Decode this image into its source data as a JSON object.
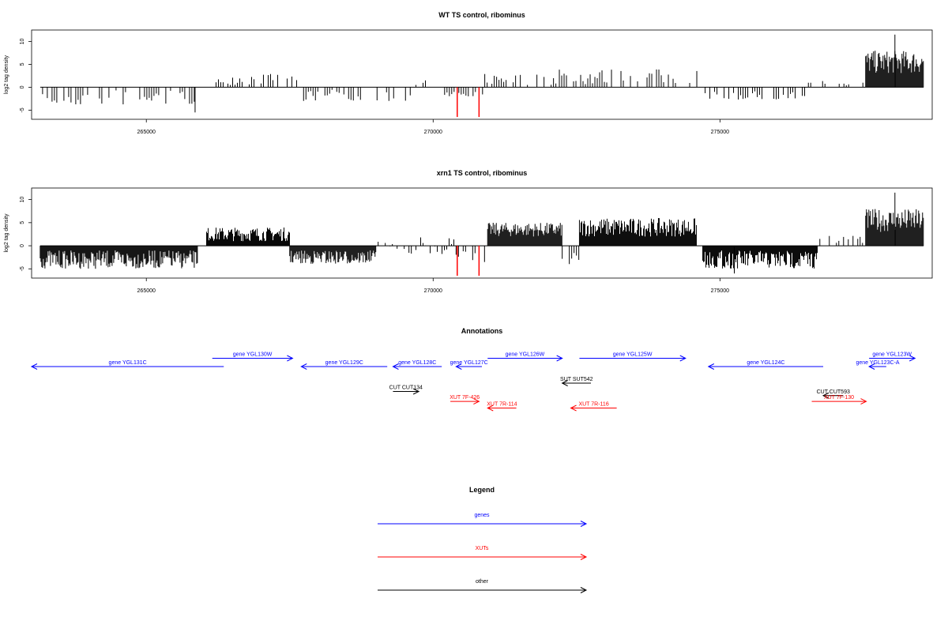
{
  "chart_data": [
    {
      "type": "bar",
      "title": "WT TS control, ribominus",
      "ylabel": "log2 tag density",
      "xlabel": "",
      "xlim": [
        263000,
        278700
      ],
      "ylim": [
        -7,
        12.5
      ],
      "xticks": [
        265000,
        270000,
        275000
      ],
      "xtick_labels": [
        "265000",
        "270000",
        "275000"
      ],
      "yticks": [
        -5,
        0,
        5,
        10
      ],
      "ytick_labels": [
        "-5",
        "0",
        "5",
        "10"
      ],
      "grid": false,
      "coverage_series": [
        {
          "name": "",
          "color": "#000000",
          "segments": [
            {
              "x": [
                263150,
                265900
              ],
              "y_range": [
                -4,
                -0.5
              ]
            },
            {
              "x": [
                266050,
                267700
              ],
              "y_range": [
                0.5,
                3
              ]
            },
            {
              "x": [
                267700,
                269700
              ],
              "y_range": [
                -3,
                -0.5
              ]
            },
            {
              "x": [
                269700,
                270200
              ],
              "y_range": [
                0.3,
                1.5
              ]
            },
            {
              "x": [
                270200,
                270900
              ],
              "y_range": [
                -2,
                -0.5
              ]
            },
            {
              "x": [
                270900,
                272200
              ],
              "y_range": [
                0.5,
                3
              ]
            },
            {
              "x": [
                272200,
                274600
              ],
              "y_range": [
                0.5,
                4
              ]
            },
            {
              "x": [
                274700,
                276500
              ],
              "y_range": [
                -3,
                -0.5
              ]
            },
            {
              "x": [
                276500,
                277500
              ],
              "y_range": [
                0.3,
                1.5
              ]
            },
            {
              "x": [
                277540,
                278550
              ],
              "y_range": [
                3,
                8
              ],
              "dense": true
            }
          ],
          "spikes": [
            {
              "x": 265850,
              "y": -5.5
            },
            {
              "x": 278050,
              "y": 11.5
            }
          ]
        },
        {
          "name": "",
          "color": "#ff0000",
          "spikes": [
            {
              "x": 270420,
              "y": -6.5
            },
            {
              "x": 270800,
              "y": -6.5
            }
          ]
        }
      ]
    },
    {
      "type": "bar",
      "title": "xrn1 TS control, ribominus",
      "ylabel": "log2 tag density",
      "xlabel": "",
      "xlim": [
        263000,
        278700
      ],
      "ylim": [
        -7,
        12.5
      ],
      "xticks": [
        265000,
        270000,
        275000
      ],
      "xtick_labels": [
        "265000",
        "270000",
        "275000"
      ],
      "yticks": [
        -5,
        0,
        5,
        10
      ],
      "ytick_labels": [
        "-5",
        "0",
        "5",
        "10"
      ],
      "grid": false,
      "coverage_series": [
        {
          "name": "",
          "color": "#000000",
          "segments": [
            {
              "x": [
                263150,
                265900
              ],
              "y_range": [
                -5,
                -1
              ],
              "dense": true
            },
            {
              "x": [
                266050,
                267500
              ],
              "y_range": [
                1,
                4
              ],
              "dense": true
            },
            {
              "x": [
                267500,
                269000
              ],
              "y_range": [
                -4,
                -1
              ],
              "dense": true
            },
            {
              "x": [
                269000,
                269700
              ],
              "y_range": [
                -3,
                1
              ]
            },
            {
              "x": [
                269700,
                270400
              ],
              "y_range": [
                -2,
                2
              ]
            },
            {
              "x": [
                270400,
                270900
              ],
              "y_range": [
                -4,
                -1
              ]
            },
            {
              "x": [
                270950,
                272250
              ],
              "y_range": [
                2,
                5
              ],
              "dense": true
            },
            {
              "x": [
                272250,
                272550
              ],
              "y_range": [
                -4,
                -1
              ]
            },
            {
              "x": [
                272550,
                274600
              ],
              "y_range": [
                2,
                6
              ],
              "dense": true
            },
            {
              "x": [
                274700,
                276700
              ],
              "y_range": [
                -5,
                -1
              ],
              "dense": true
            },
            {
              "x": [
                276700,
                277500
              ],
              "y_range": [
                0.5,
                2.5
              ]
            },
            {
              "x": [
                277540,
                278550
              ],
              "y_range": [
                3,
                8
              ],
              "dense": true
            }
          ],
          "spikes": [
            {
              "x": 278050,
              "y": 11.5
            },
            {
              "x": 275250,
              "y": -6
            }
          ]
        },
        {
          "name": "",
          "color": "#ff0000",
          "spikes": [
            {
              "x": 270420,
              "y": -6.5
            },
            {
              "x": 270800,
              "y": -6.5
            }
          ]
        }
      ]
    }
  ],
  "annotations": {
    "title": "Annotations",
    "items": [
      {
        "label": "gene YGL131C",
        "start": 263000,
        "end": 266350,
        "strand": "-",
        "row": 2,
        "category": "gene"
      },
      {
        "label": "gene YGL130W",
        "start": 266150,
        "end": 267550,
        "strand": "+",
        "row": 1,
        "category": "gene"
      },
      {
        "label": "gene YGL129C",
        "start": 267700,
        "end": 269200,
        "strand": "-",
        "row": 2,
        "category": "gene"
      },
      {
        "label": "gene YGL128C",
        "start": 269300,
        "end": 270150,
        "strand": "-",
        "row": 2,
        "category": "gene"
      },
      {
        "label": "gene YGL127C",
        "start": 270400,
        "end": 270850,
        "strand": "-",
        "row": 2,
        "category": "gene"
      },
      {
        "label": "gene YGL126W",
        "start": 270950,
        "end": 272250,
        "strand": "+",
        "row": 1,
        "category": "gene"
      },
      {
        "label": "gene YGL125W",
        "start": 272550,
        "end": 274400,
        "strand": "+",
        "row": 1,
        "category": "gene"
      },
      {
        "label": "gene YGL124C",
        "start": 274800,
        "end": 276800,
        "strand": "-",
        "row": 2,
        "category": "gene"
      },
      {
        "label": "gene YGL123W",
        "start": 277600,
        "end": 278400,
        "strand": "+",
        "row": 1,
        "category": "gene"
      },
      {
        "label": "gene YGL123C-A",
        "start": 277600,
        "end": 277900,
        "strand": "-",
        "row": 2,
        "category": "gene"
      },
      {
        "label": "SUT SUT542",
        "start": 272250,
        "end": 272750,
        "strand": "-",
        "row": 4,
        "category": "other"
      },
      {
        "label": "CUT CUT134",
        "start": 269300,
        "end": 269750,
        "strand": "+",
        "row": 5,
        "category": "other"
      },
      {
        "label": "CUT CUT593",
        "start": 276800,
        "end": 277150,
        "strand": "-",
        "row": 5.5,
        "category": "other"
      },
      {
        "label": "XUT 7F-426",
        "start": 270300,
        "end": 270800,
        "strand": "+",
        "row": 6.2,
        "category": "XUT"
      },
      {
        "label": "XUT 7R-114",
        "start": 270950,
        "end": 271450,
        "strand": "-",
        "row": 7,
        "category": "XUT"
      },
      {
        "label": "XUT 7R-116",
        "start": 272400,
        "end": 273200,
        "strand": "-",
        "row": 7,
        "category": "XUT"
      },
      {
        "label": "XUT 7F-130",
        "start": 276600,
        "end": 277550,
        "strand": "+",
        "row": 6.2,
        "category": "XUT"
      }
    ]
  },
  "legend": {
    "title": "Legend",
    "entries": [
      {
        "label": "genes",
        "color": "#0000ff"
      },
      {
        "label": "XUTs",
        "color": "#ff0000"
      },
      {
        "label": "other",
        "color": "#000000"
      }
    ]
  },
  "colors": {
    "gene": "#0000ff",
    "XUT": "#ff0000",
    "other": "#000000"
  }
}
